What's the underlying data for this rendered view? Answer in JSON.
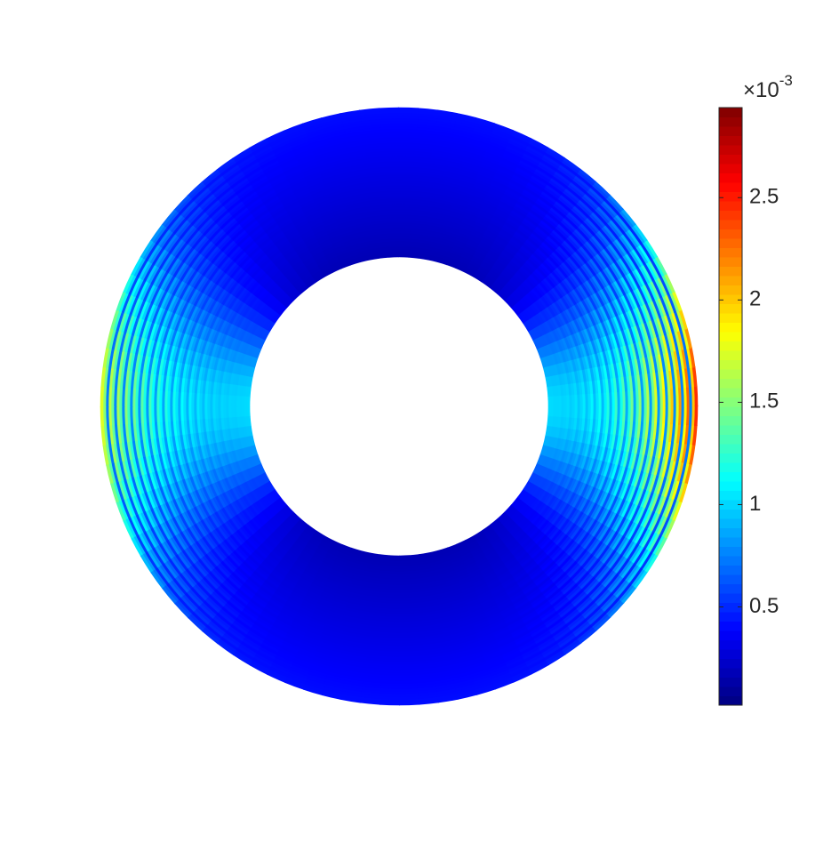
{
  "chart_data": {
    "type": "annulus_field",
    "colormap": "jet",
    "clim": [
      0.02,
      2.94
    ],
    "colorbar_ticks": [
      0.5,
      1,
      1.5,
      2,
      2.5
    ],
    "colorbar_multiplier": {
      "base": "×10",
      "exponent": "-3"
    }
  }
}
